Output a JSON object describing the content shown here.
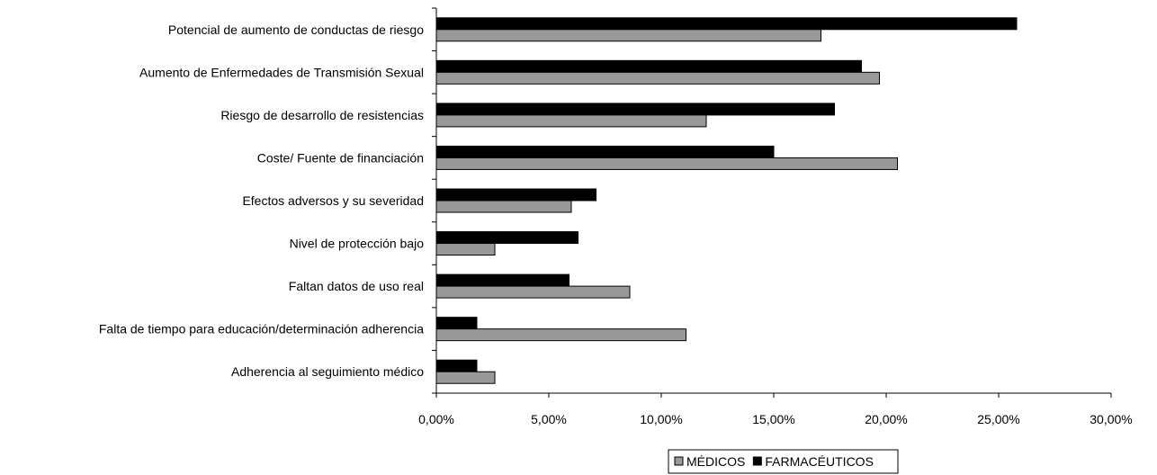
{
  "chart_data": {
    "type": "bar",
    "orientation": "horizontal",
    "categories": [
      "Potencial de aumento de conductas de riesgo",
      "Aumento de Enfermedades de Transmisión Sexual",
      "Riesgo de desarrollo de resistencias",
      "Coste/ Fuente de financiación",
      "Efectos adversos y su severidad",
      "Nivel de protección bajo",
      "Faltan datos de uso real",
      "Falta de tiempo para educación/determinación adherencia",
      "Adherencia al seguimiento médico"
    ],
    "series": [
      {
        "name": "FARMACÉUTICOS",
        "color": "#000000",
        "values": [
          25.8,
          18.9,
          17.7,
          15.0,
          7.1,
          6.3,
          5.9,
          1.8,
          1.8
        ]
      },
      {
        "name": "MÉDICOS",
        "color": "#999999",
        "values": [
          17.1,
          19.7,
          12.0,
          20.5,
          6.0,
          2.6,
          8.6,
          11.1,
          2.6
        ]
      }
    ],
    "xlim": [
      0,
      30
    ],
    "x_ticks": [
      0,
      5,
      10,
      15,
      20,
      25,
      30
    ],
    "x_tick_labels": [
      "0,00%",
      "5,00%",
      "10,00%",
      "15,00%",
      "20,00%",
      "25,00%",
      "30,00%"
    ],
    "legend": {
      "placement": "bottom",
      "entries": [
        "MÉDICOS",
        "FARMACÉUTICOS"
      ]
    },
    "grid": false
  }
}
